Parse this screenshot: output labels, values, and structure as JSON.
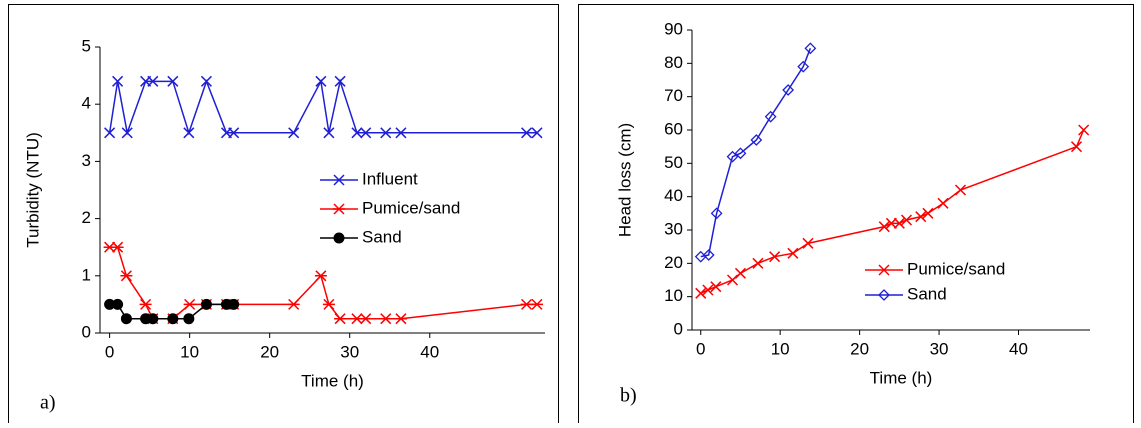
{
  "chart_data": [
    {
      "type": "line",
      "annotation": "a)",
      "x_label": "Time (h)",
      "y_label": "Turbidity (NTU)",
      "xlim": [
        -1.2,
        54.4
      ],
      "xticks": [
        0,
        10,
        20,
        30,
        40
      ],
      "ylim": [
        0,
        5
      ],
      "yticks": [
        0,
        1,
        2,
        3,
        4,
        5
      ],
      "legend": "center right",
      "series": [
        {
          "name": "Influent",
          "color": "#1f1fd6",
          "marker": "x",
          "x": [
            0,
            1,
            2.2,
            4.5,
            5.4,
            7.9,
            9.9,
            12.1,
            14.6,
            15.5,
            23,
            26.4,
            27.4,
            28.8,
            30.9,
            32,
            34.5,
            36.4,
            52.1,
            53.4
          ],
          "values": [
            3.5,
            4.4,
            3.5,
            4.4,
            4.4,
            4.4,
            3.5,
            4.4,
            3.5,
            3.5,
            3.5,
            4.4,
            3.5,
            4.4,
            3.5,
            3.5,
            3.5,
            3.5,
            3.5,
            3.5
          ]
        },
        {
          "name": "Pumice/sand",
          "color": "#ff0000",
          "marker": "asterisk",
          "x": [
            0,
            1,
            2.1,
            4.5,
            5.4,
            7.9,
            10,
            12.1,
            14.6,
            15.5,
            23,
            26.4,
            27.4,
            28.8,
            30.9,
            32,
            34.5,
            36.4,
            52.1,
            53.4
          ],
          "values": [
            1.5,
            1.5,
            1.0,
            0.5,
            0.25,
            0.25,
            0.5,
            0.5,
            0.5,
            0.5,
            0.5,
            1.0,
            0.5,
            0.25,
            0.25,
            0.25,
            0.25,
            0.25,
            0.5,
            0.5
          ]
        },
        {
          "name": "Sand",
          "color": "#000000",
          "marker": "circle",
          "x": [
            0,
            1,
            2.1,
            4.5,
            5.4,
            7.9,
            9.9,
            12.1,
            14.6,
            15.5
          ],
          "values": [
            0.5,
            0.5,
            0.25,
            0.25,
            0.25,
            0.25,
            0.25,
            0.5,
            0.5,
            0.5
          ]
        }
      ]
    },
    {
      "type": "line",
      "annotation": "b)",
      "x_label": "Time (h)",
      "y_label": "Head loss (cm)",
      "xlim": [
        -1.1,
        49
      ],
      "xticks": [
        0,
        10,
        20,
        30,
        40
      ],
      "ylim": [
        0,
        90
      ],
      "yticks": [
        0,
        10,
        20,
        30,
        40,
        50,
        60,
        70,
        80,
        90
      ],
      "legend": "lower right",
      "series": [
        {
          "name": "Pumice/sand",
          "color": "#ff0000",
          "marker": "x",
          "x": [
            0,
            0.9,
            1.9,
            4,
            5,
            7.2,
            9.3,
            11.6,
            13.5,
            23.1,
            24,
            25,
            25.9,
            27.7,
            28.6,
            30.5,
            32.7,
            47.3,
            48.2
          ],
          "values": [
            11,
            12,
            13,
            15,
            17,
            20,
            22,
            23,
            26,
            31,
            32,
            32,
            33,
            34,
            35,
            38,
            42,
            55,
            60
          ]
        },
        {
          "name": "Sand",
          "color": "#1f1fd6",
          "marker": "diamond",
          "x": [
            0,
            1,
            2,
            4,
            5,
            7,
            8.8,
            11,
            12.9,
            13.8
          ],
          "values": [
            22,
            22.5,
            35,
            52,
            53,
            57,
            64,
            72,
            79,
            84.5
          ]
        }
      ]
    }
  ]
}
